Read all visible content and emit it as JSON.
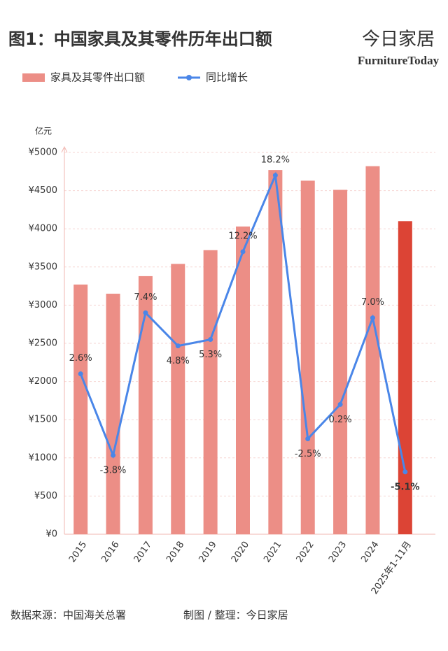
{
  "chart_data": {
    "type": "bar_line",
    "title": "图1：中国家具及其零件历年出口额",
    "brand": "今日家居",
    "brand_logo": "FurnitureToday",
    "y_axis_label": "亿元",
    "categories": [
      "2015",
      "2016",
      "2017",
      "2018",
      "2019",
      "2020",
      "2021",
      "2022",
      "2023",
      "2024",
      "2025年1-11月"
    ],
    "series": [
      {
        "name": "家具及其零件出口额",
        "type": "bar",
        "color": "#ec8e86",
        "colors": [
          "#ec8e86",
          "#ec8e86",
          "#ec8e86",
          "#ec8e86",
          "#ec8e86",
          "#ec8e86",
          "#ec8e86",
          "#ec8e86",
          "#ec8e86",
          "#ec8e86",
          "#dc4435"
        ],
        "values": [
          3270,
          3150,
          3380,
          3540,
          3720,
          4030,
          4770,
          4630,
          4510,
          4820,
          4100
        ]
      },
      {
        "name": "同比增长",
        "type": "line",
        "color": "#4a86e8",
        "axis": "y2",
        "values": [
          2.6,
          -3.8,
          7.4,
          4.8,
          5.3,
          12.2,
          18.2,
          -2.5,
          0.2,
          7.0,
          -5.1
        ],
        "value_labels": [
          "2.6%",
          "-3.8%",
          "7.4%",
          "4.8%",
          "5.3%",
          "12.2%",
          "18.2%",
          "-2.5%",
          "0.2%",
          "7.0%",
          "-5.1%"
        ]
      }
    ],
    "ylim": [
      0,
      5000
    ],
    "yticks": [
      {
        "value": 0,
        "label": "¥0"
      },
      {
        "value": 500,
        "label": "¥500"
      },
      {
        "value": 1000,
        "label": "¥1000"
      },
      {
        "value": 1500,
        "label": "¥1500"
      },
      {
        "value": 2000,
        "label": "¥2000"
      },
      {
        "value": 2500,
        "label": "¥2500"
      },
      {
        "value": 3000,
        "label": "¥3000"
      },
      {
        "value": 3500,
        "label": "¥3500"
      },
      {
        "value": 4000,
        "label": "¥4000"
      },
      {
        "value": 4500,
        "label": "¥4500"
      },
      {
        "value": 5000,
        "label": "¥5000"
      }
    ],
    "y2lim": [
      -10,
      20
    ],
    "grid": true,
    "source": "数据来源：中国海关总署",
    "credit": "制图 / 整理：今日家居"
  }
}
